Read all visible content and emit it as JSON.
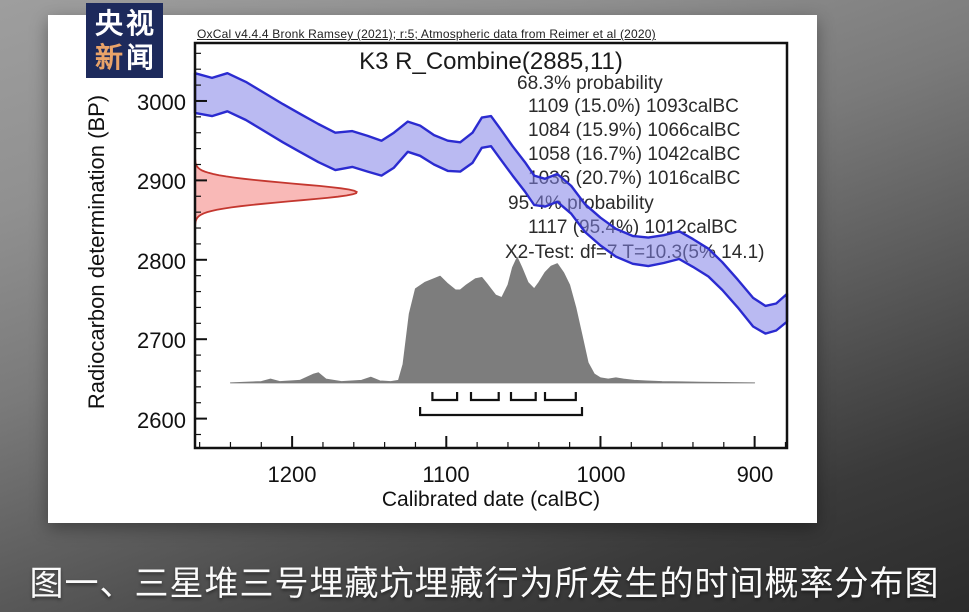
{
  "logo": {
    "line1": "央视",
    "char3": "新",
    "char4": "闻",
    "bg_color": "#1d2a5c",
    "accent_color": "#e9a369"
  },
  "caption": "图一、三星堆三号埋藏坑埋藏行为所发生的时间概率分布图",
  "chart_data": {
    "type": "area",
    "subtype": "oxcal-radiocarbon-calibration",
    "header": "OxCal v4.4.4 Bronk Ramsey (2021); r:5; Atmospheric data from Reimer et al (2020)",
    "title": "K3 R_Combine(2885,11)",
    "xlabel": "Calibrated date (calBC)",
    "ylabel": "Radiocarbon determination (BP)",
    "x_ticks": [
      1200,
      1100,
      1000,
      900
    ],
    "y_ticks": [
      3000,
      2900,
      2800,
      2700,
      2600
    ],
    "x_minor_step": 20,
    "y_minor_step": 20,
    "x_domain": [
      1263,
      879
    ],
    "y_domain": [
      2563,
      3073
    ],
    "annotation_lines": [
      "68.3% probability",
      "1109 (15.0%) 1093calBC",
      "1084 (15.9%) 1066calBC",
      "1058 (16.7%) 1042calBC",
      "1036 (20.7%) 1016calBC",
      "95.4% probability",
      "1117 (95.4%) 1012calBC",
      "X2-Test: df=7 T=10.3(5% 14.1)"
    ],
    "x2_test": {
      "df": 7,
      "T": 10.3,
      "threshold_5pct": 14.1
    },
    "calibration_curve": {
      "name": "IntCal20 atmospheric curve (1-sigma band)",
      "fill": "rgba(130,130,232,0.55)",
      "stroke": "#2b2bd0",
      "points": [
        [
          1263,
          3035,
          2985
        ],
        [
          1252,
          3029,
          2981
        ],
        [
          1242,
          3035,
          2987
        ],
        [
          1230,
          3024,
          2976
        ],
        [
          1218,
          3010,
          2962
        ],
        [
          1206,
          2996,
          2948
        ],
        [
          1195,
          2984,
          2936
        ],
        [
          1183,
          2971,
          2923
        ],
        [
          1172,
          2960,
          2913
        ],
        [
          1161,
          2962,
          2917
        ],
        [
          1151,
          2956,
          2911
        ],
        [
          1142,
          2950,
          2906
        ],
        [
          1134,
          2960,
          2916
        ],
        [
          1125,
          2974,
          2936
        ],
        [
          1117,
          2969,
          2931
        ],
        [
          1108,
          2957,
          2920
        ],
        [
          1099,
          2950,
          2912
        ],
        [
          1091,
          2948,
          2911
        ],
        [
          1083,
          2960,
          2922
        ],
        [
          1077,
          2979,
          2941
        ],
        [
          1071,
          2981,
          2943
        ],
        [
          1065,
          2965,
          2927
        ],
        [
          1057,
          2943,
          2906
        ],
        [
          1049,
          2923,
          2886
        ],
        [
          1043,
          2906,
          2869
        ],
        [
          1036,
          2902,
          2867
        ],
        [
          1028,
          2908,
          2873
        ],
        [
          1019,
          2893,
          2858
        ],
        [
          1010,
          2870,
          2835
        ],
        [
          1000,
          2853,
          2818
        ],
        [
          990,
          2839,
          2804
        ],
        [
          979,
          2830,
          2795
        ],
        [
          969,
          2828,
          2792
        ],
        [
          959,
          2831,
          2796
        ],
        [
          949,
          2836,
          2801
        ],
        [
          940,
          2826,
          2791
        ],
        [
          930,
          2814,
          2779
        ],
        [
          921,
          2797,
          2762
        ],
        [
          911,
          2775,
          2740
        ],
        [
          901,
          2752,
          2716
        ],
        [
          893,
          2742,
          2707
        ],
        [
          886,
          2745,
          2711
        ],
        [
          879,
          2757,
          2722
        ]
      ]
    },
    "likelihood": {
      "name": "R_Combine(2885,11) radiocarbon determination",
      "mean_bp": 2885,
      "sigma_bp": 11,
      "peak_width_years": 105,
      "fill": "rgba(244,128,124,0.55)",
      "stroke": "#c4372f"
    },
    "posterior": {
      "name": "Calibrated posterior probability",
      "baseline_bp": 2645,
      "peak_height_bp": 158,
      "color": "#7d7d7d",
      "points": [
        [
          1240,
          0
        ],
        [
          1220,
          0.01
        ],
        [
          1214,
          0.03
        ],
        [
          1208,
          0.01
        ],
        [
          1195,
          0.02
        ],
        [
          1186,
          0.07
        ],
        [
          1183,
          0.08
        ],
        [
          1178,
          0.03
        ],
        [
          1168,
          0.01
        ],
        [
          1155,
          0.02
        ],
        [
          1149,
          0.045
        ],
        [
          1143,
          0.015
        ],
        [
          1136,
          0.01
        ],
        [
          1131,
          0.02
        ],
        [
          1128,
          0.15
        ],
        [
          1124,
          0.55
        ],
        [
          1120,
          0.75
        ],
        [
          1114,
          0.8
        ],
        [
          1108,
          0.83
        ],
        [
          1104,
          0.85
        ],
        [
          1099,
          0.79
        ],
        [
          1094,
          0.74
        ],
        [
          1091,
          0.74
        ],
        [
          1087,
          0.78
        ],
        [
          1081,
          0.83
        ],
        [
          1077,
          0.84
        ],
        [
          1073,
          0.78
        ],
        [
          1068,
          0.7
        ],
        [
          1064,
          0.68
        ],
        [
          1060,
          0.78
        ],
        [
          1057,
          0.92
        ],
        [
          1054,
          1.0
        ],
        [
          1051,
          0.92
        ],
        [
          1047,
          0.8
        ],
        [
          1043,
          0.75
        ],
        [
          1040,
          0.8
        ],
        [
          1036,
          0.88
        ],
        [
          1032,
          0.93
        ],
        [
          1028,
          0.95
        ],
        [
          1024,
          0.88
        ],
        [
          1020,
          0.78
        ],
        [
          1016,
          0.6
        ],
        [
          1012,
          0.38
        ],
        [
          1008,
          0.16
        ],
        [
          1004,
          0.07
        ],
        [
          1000,
          0.04
        ],
        [
          995,
          0.03
        ],
        [
          990,
          0.04
        ],
        [
          985,
          0.03
        ],
        [
          978,
          0.02
        ],
        [
          970,
          0.015
        ],
        [
          960,
          0.01
        ],
        [
          948,
          0.008
        ],
        [
          935,
          0.005
        ],
        [
          920,
          0.003
        ],
        [
          900,
          0
        ]
      ]
    },
    "ranges_68": [
      {
        "from": 1109,
        "to": 1093,
        "percent": 15.0
      },
      {
        "from": 1084,
        "to": 1066,
        "percent": 15.9
      },
      {
        "from": 1058,
        "to": 1042,
        "percent": 16.7
      },
      {
        "from": 1036,
        "to": 1016,
        "percent": 20.7
      }
    ],
    "range_95": {
      "from": 1117,
      "to": 1012,
      "percent": 95.4
    }
  }
}
